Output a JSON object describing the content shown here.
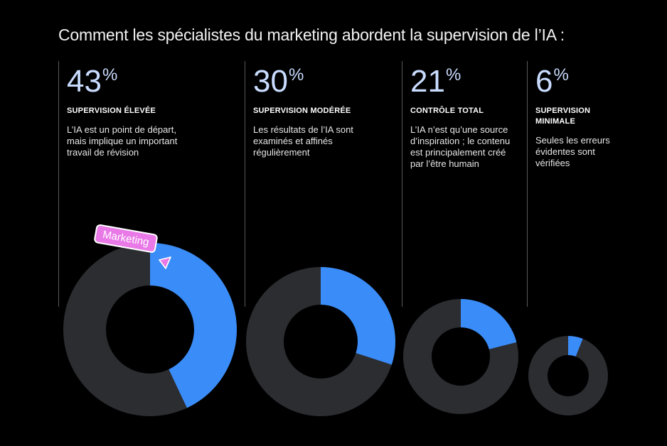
{
  "title": "Comment les spécialistes du marketing abordent la supervision de l’IA :",
  "colors": {
    "background": "#000000",
    "ring": "#2b2d31",
    "accent": "#3a8cf8",
    "percent_text": "#c9dcff",
    "badge": "#e879e6"
  },
  "columns": [
    {
      "value": "43",
      "unit": "%",
      "heading": "SUPERVISION ÉLEVÉE",
      "description": "L’IA est un point de départ, mais implique un important travail de révision"
    },
    {
      "value": "30",
      "unit": "%",
      "heading": "SUPERVISION MODÉRÉE",
      "description": "Les résultats de l’IA sont examinés et affinés régulièrement"
    },
    {
      "value": "21",
      "unit": "%",
      "heading": "CONTRÔLE TOTAL",
      "description": "L’IA n’est qu’une source d’inspiration ; le contenu est principalement créé par l’être humain"
    },
    {
      "value": "6",
      "unit": "%",
      "heading": "SUPERVISION MINIMALE",
      "description": "Seules les erreurs évidentes sont vérifiées"
    }
  ],
  "badge": {
    "label": "Marketing",
    "icon": "cursor-arrow-icon"
  },
  "chart_data": {
    "type": "pie",
    "style": "donut",
    "title": "Comment les spécialistes du marketing abordent la supervision de l’IA :",
    "categories": [
      "SUPERVISION ÉLEVÉE",
      "SUPERVISION MODÉRÉE",
      "CONTRÔLE TOTAL",
      "SUPERVISION MINIMALE"
    ],
    "values": [
      43,
      30,
      21,
      6
    ],
    "unit": "%"
  }
}
